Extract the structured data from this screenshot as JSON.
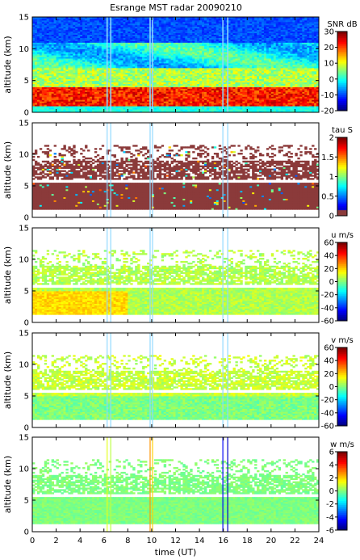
{
  "chart_data": [
    {
      "type": "heatmap",
      "title": "Esrange MST radar 20090210",
      "ylabel": "altitude (km)",
      "xlabel": "",
      "xlim": [
        0,
        24
      ],
      "ylim": [
        0,
        15
      ],
      "yticks": [
        "0",
        "5",
        "10",
        "15"
      ],
      "colorbar": {
        "label": "SNR dB",
        "range": [
          -20,
          30
        ],
        "ticks": [
          "30",
          "20",
          "10",
          "0",
          "-10",
          "-20"
        ]
      }
    },
    {
      "type": "heatmap",
      "ylabel": "altitude (km)",
      "xlim": [
        0,
        24
      ],
      "ylim": [
        0,
        15
      ],
      "yticks": [
        "0",
        "5",
        "10",
        "15"
      ],
      "colorbar": {
        "label": "tau S",
        "range": [
          0,
          2
        ],
        "ticks": [
          "2",
          "1.5",
          "1",
          "0.5",
          "0"
        ]
      }
    },
    {
      "type": "heatmap",
      "ylabel": "altitude (km)",
      "xlim": [
        0,
        24
      ],
      "ylim": [
        0,
        15
      ],
      "yticks": [
        "0",
        "5",
        "10",
        "15"
      ],
      "colorbar": {
        "label": "u m/s",
        "range": [
          -60,
          60
        ],
        "ticks": [
          "60",
          "40",
          "20",
          "0",
          "-20",
          "-40",
          "-60"
        ]
      }
    },
    {
      "type": "heatmap",
      "ylabel": "altitude (km)",
      "xlim": [
        0,
        24
      ],
      "ylim": [
        0,
        15
      ],
      "yticks": [
        "0",
        "5",
        "10",
        "15"
      ],
      "colorbar": {
        "label": "v m/s",
        "range": [
          -60,
          60
        ],
        "ticks": [
          "60",
          "40",
          "20",
          "0",
          "-20",
          "-40",
          "-60"
        ]
      }
    },
    {
      "type": "heatmap",
      "ylabel": "altitude (km)",
      "xlabel": "time (UT)",
      "xlim": [
        0,
        24
      ],
      "ylim": [
        0,
        15
      ],
      "yticks": [
        "0",
        "5",
        "10",
        "15"
      ],
      "xticks": [
        "0",
        "2",
        "4",
        "6",
        "8",
        "10",
        "12",
        "14",
        "16",
        "18",
        "20",
        "22",
        "24"
      ],
      "colorbar": {
        "label": "w m/s",
        "range": [
          -6,
          6
        ],
        "ticks": [
          "6",
          "4",
          "2",
          "0",
          "-2",
          "-4",
          "-6"
        ]
      }
    }
  ]
}
